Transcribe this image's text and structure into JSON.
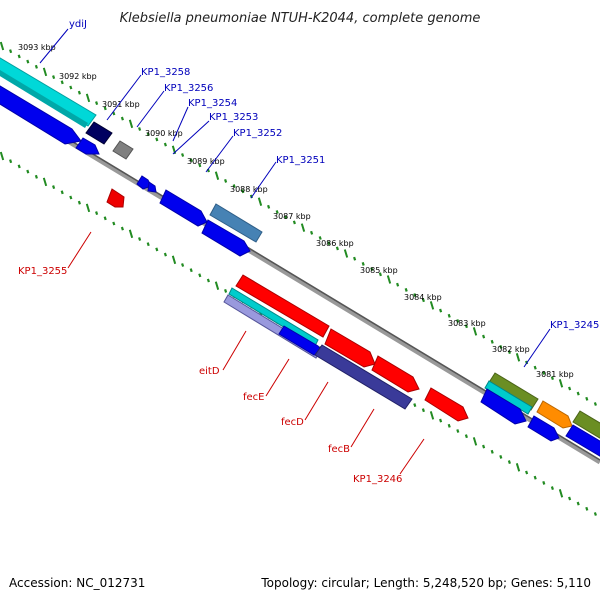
{
  "title": "Klebsiella pneumoniae NTUH-K2044, complete genome",
  "footer": {
    "accession": "Accession: NC_012731",
    "summary": "Topology: circular; Length: 5,248,520 bp; Genes: 5,110"
  },
  "colors": {
    "label_upper": "#0000bb",
    "label_lower": "#cc0000",
    "ticks": "#228b22",
    "backbone_light": "#999999",
    "backbone_dark": "#555555"
  },
  "scale_labels": [
    "3093 kbp",
    "3092 kbp",
    "3091 kbp",
    "3090 kbp",
    "3089 kbp",
    "3088 kbp",
    "3087 kbp",
    "3086 kbp",
    "3085 kbp",
    "3084 kbp",
    "3083 kbp",
    "3082 kbp",
    "3081 kbp"
  ],
  "upper_labels": [
    "ydiJ",
    "KP1_3258",
    "KP1_3256",
    "KP1_3254",
    "KP1_3253",
    "KP1_3252",
    "KP1_3251",
    "KP1_3245"
  ],
  "lower_labels": [
    "KP1_3255",
    "eitD",
    "fecE",
    "fecD",
    "fecB",
    "KP1_3246"
  ]
}
